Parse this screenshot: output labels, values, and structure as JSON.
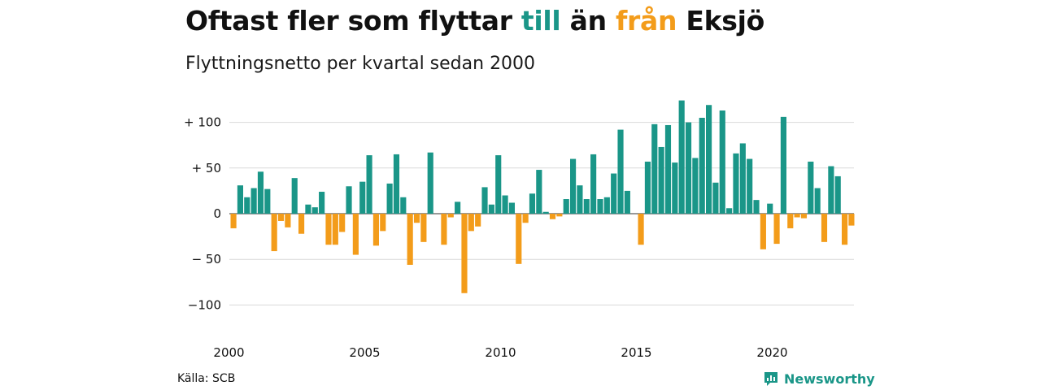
{
  "title": {
    "part1": "Oftast fler som flyttar ",
    "highlight_pos": "till",
    "part2": " än ",
    "highlight_neg": "från",
    "part3": " Eksjö"
  },
  "subtitle": "Flyttningsnetto per kvartal sedan 2000",
  "source": "Källa: SCB",
  "brand": {
    "name": "Newsworthy",
    "logo_icon": "newsworthy-logo-icon"
  },
  "colors": {
    "positive": "#1a9688",
    "negative": "#f39c1a",
    "grid": "#d9d9d9"
  },
  "chart_data": {
    "type": "bar",
    "title": "Oftast fler som flyttar till än från Eksjö",
    "subtitle": "Flyttningsnetto per kvartal sedan 2000",
    "ylim": [
      -125,
      125
    ],
    "yticks": [
      100,
      50,
      0,
      -50,
      -100
    ],
    "ytick_labels": [
      "+ 100",
      "+  50",
      "0",
      "− 50",
      "−100"
    ],
    "xticks": [
      2000,
      2005,
      2010,
      2015,
      2020
    ],
    "x_start_year": 2000,
    "grid": true,
    "legend": "none",
    "values": [
      -16,
      31,
      18,
      28,
      46,
      27,
      -41,
      -8,
      -15,
      39,
      -22,
      10,
      7,
      24,
      -34,
      -34,
      -20,
      30,
      -45,
      35,
      64,
      -35,
      -19,
      33,
      65,
      18,
      -56,
      -10,
      -31,
      67,
      0,
      -34,
      -4,
      13,
      -87,
      -19,
      -14,
      29,
      10,
      64,
      20,
      12,
      -55,
      -10,
      22,
      48,
      2,
      -6,
      -3,
      16,
      60,
      31,
      16,
      65,
      16,
      18,
      44,
      92,
      25,
      0,
      -34,
      57,
      98,
      73,
      97,
      56,
      124,
      100,
      61,
      105,
      119,
      34,
      113,
      6,
      66,
      77,
      60,
      15,
      -39,
      11,
      -33,
      106,
      -16,
      -4,
      -5,
      57,
      28,
      -31,
      52,
      41,
      -34,
      -13
    ]
  }
}
